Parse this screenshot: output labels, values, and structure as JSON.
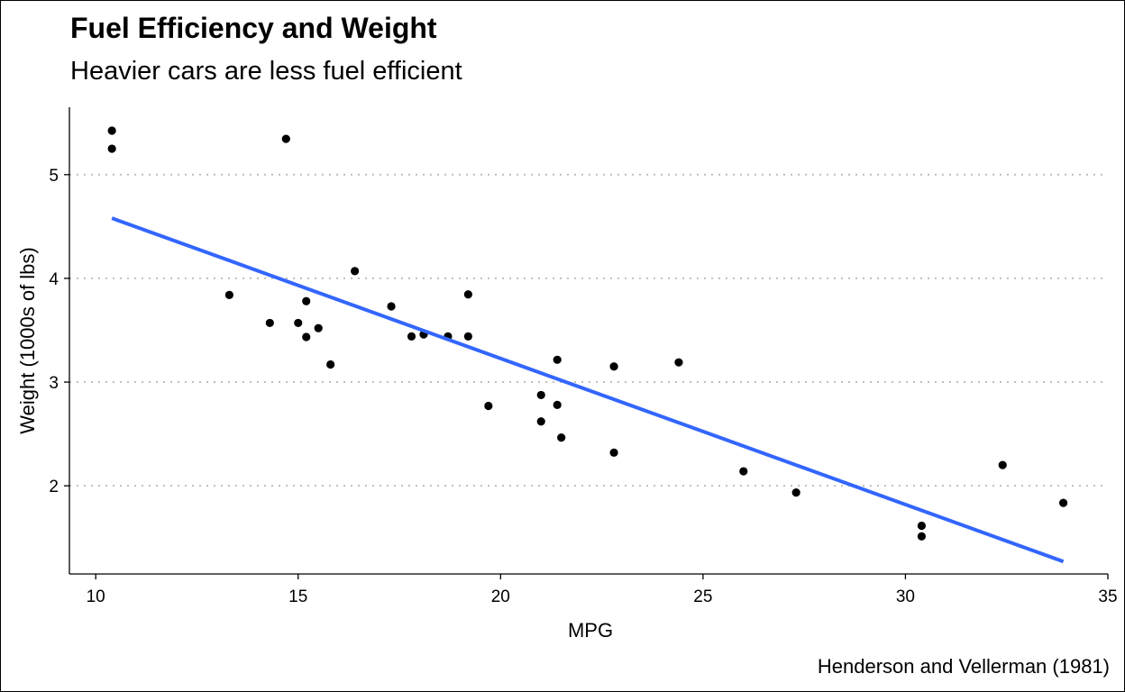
{
  "chart_data": {
    "type": "scatter",
    "title": "Fuel Efficiency and Weight",
    "subtitle": "Heavier cars are less fuel efficient",
    "caption": "Henderson and Vellerman (1981)",
    "xlabel": "MPG",
    "ylabel": "Weight (1000s of lbs)",
    "xlim": [
      9.35,
      35.0
    ],
    "ylim": [
      1.15,
      5.65
    ],
    "x_ticks": [
      10,
      15,
      20,
      25,
      30,
      35
    ],
    "y_ticks": [
      2,
      3,
      4,
      5
    ],
    "grid": "horizontal dotted",
    "legend": "none",
    "colors": {
      "points": "#000000",
      "trend": "#3366ff",
      "grid": "#bebebe"
    },
    "points": [
      {
        "x": 21.0,
        "y": 2.62
      },
      {
        "x": 21.0,
        "y": 2.875
      },
      {
        "x": 22.8,
        "y": 2.32
      },
      {
        "x": 21.4,
        "y": 3.215
      },
      {
        "x": 18.7,
        "y": 3.44
      },
      {
        "x": 18.1,
        "y": 3.46
      },
      {
        "x": 14.3,
        "y": 3.57
      },
      {
        "x": 24.4,
        "y": 3.19
      },
      {
        "x": 22.8,
        "y": 3.15
      },
      {
        "x": 19.2,
        "y": 3.44
      },
      {
        "x": 17.8,
        "y": 3.44
      },
      {
        "x": 16.4,
        "y": 4.07
      },
      {
        "x": 17.3,
        "y": 3.73
      },
      {
        "x": 15.2,
        "y": 3.78
      },
      {
        "x": 10.4,
        "y": 5.25
      },
      {
        "x": 10.4,
        "y": 5.424
      },
      {
        "x": 14.7,
        "y": 5.345
      },
      {
        "x": 32.4,
        "y": 2.2
      },
      {
        "x": 30.4,
        "y": 1.615
      },
      {
        "x": 33.9,
        "y": 1.835
      },
      {
        "x": 21.5,
        "y": 2.465
      },
      {
        "x": 15.5,
        "y": 3.52
      },
      {
        "x": 15.2,
        "y": 3.435
      },
      {
        "x": 13.3,
        "y": 3.84
      },
      {
        "x": 19.2,
        "y": 3.845
      },
      {
        "x": 27.3,
        "y": 1.935
      },
      {
        "x": 26.0,
        "y": 2.14
      },
      {
        "x": 30.4,
        "y": 1.513
      },
      {
        "x": 15.8,
        "y": 3.17
      },
      {
        "x": 19.7,
        "y": 2.77
      },
      {
        "x": 15.0,
        "y": 3.57
      },
      {
        "x": 21.4,
        "y": 2.78
      }
    ],
    "trend_line": {
      "method": "linear",
      "points": [
        {
          "x": 10.4,
          "y": 4.58
        },
        {
          "x": 33.9,
          "y": 1.27
        }
      ]
    }
  }
}
